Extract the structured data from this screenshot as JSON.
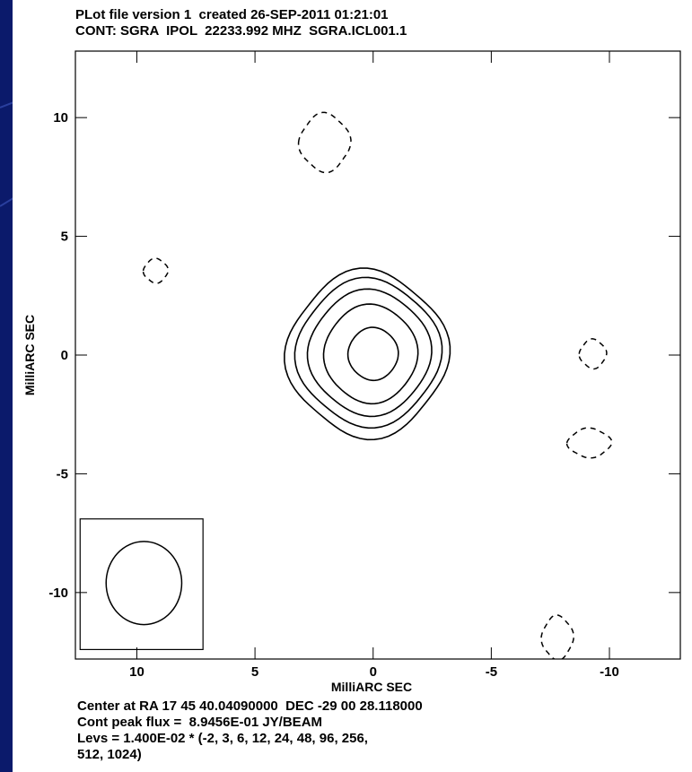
{
  "header": {
    "line1": "PLot file version 1  created 26-SEP-2011 01:21:01",
    "line2": "CONT: SGRA  IPOL  22233.992 MHZ  SGRA.ICL001.1"
  },
  "footer": {
    "line1": "Center at RA 17 45 40.04090000  DEC -29 00 28.118000",
    "line2": "Cont peak flux =  8.9456E-01 JY/BEAM",
    "line3": "Levs = 1.400E-02 * (-2, 3, 6, 12, 24, 48, 96, 256,",
    "line4": "512, 1024)"
  },
  "colors": {
    "background": "#0b1a6b",
    "sheet": "#ffffff",
    "ink": "#000000"
  },
  "chart_data": {
    "type": "contour",
    "title": "CONT: SGRA  IPOL  22233.992 MHZ  SGRA.ICL001.1",
    "xlabel": "MilliARC SEC",
    "ylabel": "MilliARC SEC",
    "xlim": [
      12.6,
      -13.0
    ],
    "ylim": [
      -12.8,
      12.8
    ],
    "x_ticks": [
      10,
      5,
      0,
      -5,
      -10
    ],
    "x_tick_labels": [
      "10",
      "5",
      "0",
      "-5",
      "-10"
    ],
    "y_ticks": [
      10,
      5,
      0,
      -5,
      -10
    ],
    "y_tick_labels": [
      "10",
      "5",
      "0",
      "-5",
      "-10"
    ],
    "grid": false,
    "center": {
      "ra": "17 45 40.04090000",
      "dec": "-29 00 28.118000"
    },
    "peak_flux": "8.9456E-01 JY/BEAM",
    "levels_base": 0.014,
    "levels": [
      -2,
      3,
      6,
      12,
      24,
      48,
      96,
      256,
      512,
      1024
    ],
    "positive_contours": [
      {
        "level": 3,
        "cx": 0.25,
        "cy": 0.05,
        "rx": 3.35,
        "ry": 3.45
      },
      {
        "level": 6,
        "cx": 0.2,
        "cy": 0.1,
        "rx": 3.0,
        "ry": 3.05
      },
      {
        "level": 12,
        "cx": 0.15,
        "cy": 0.1,
        "rx": 2.55,
        "ry": 2.6
      },
      {
        "level": 24,
        "cx": 0.1,
        "cy": 0.05,
        "rx": 1.95,
        "ry": 2.05
      },
      {
        "level": 48,
        "cx": 0.0,
        "cy": 0.05,
        "rx": 1.05,
        "ry": 1.1
      }
    ],
    "negative_contours": [
      {
        "level": -2,
        "cx": 2.05,
        "cy": 8.95,
        "rx": 1.05,
        "ry": 1.2
      },
      {
        "level": -2,
        "cx": 9.2,
        "cy": 3.55,
        "rx": 0.5,
        "ry": 0.5
      },
      {
        "level": -2,
        "cx": -9.3,
        "cy": 0.05,
        "rx": 0.55,
        "ry": 0.6
      },
      {
        "level": -2,
        "cx": -9.15,
        "cy": -3.7,
        "rx": 0.9,
        "ry": 0.6
      },
      {
        "level": -2,
        "cx": -7.8,
        "cy": -11.9,
        "rx": 0.65,
        "ry": 0.9
      }
    ],
    "beam": {
      "box": {
        "x1": 12.4,
        "x2": 7.2,
        "y1": -6.9,
        "y2": -12.4
      },
      "cx": 9.7,
      "cy": -9.6,
      "rx": 1.6,
      "ry": 1.75
    }
  }
}
